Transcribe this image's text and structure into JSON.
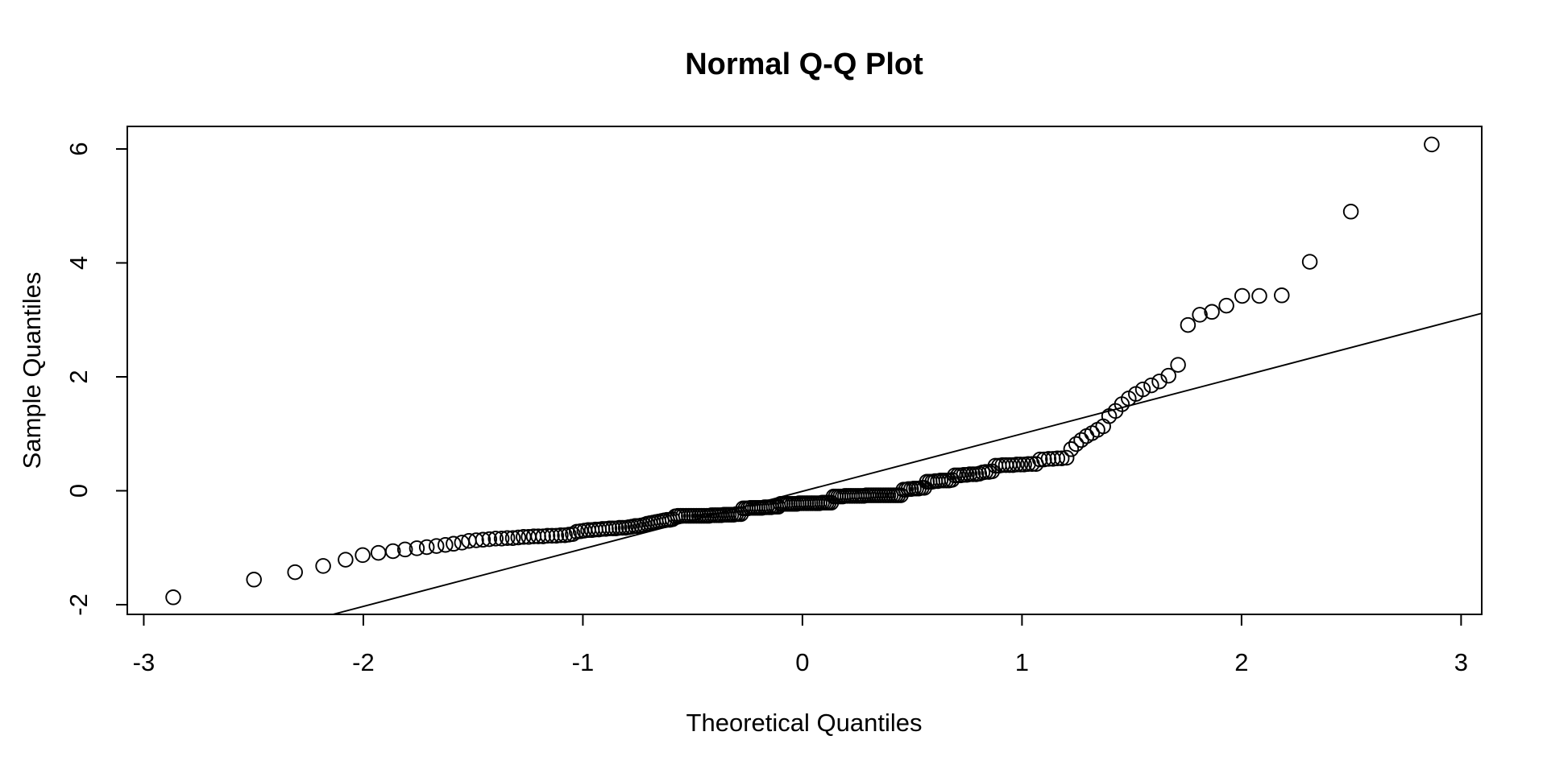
{
  "title": "Normal Q-Q Plot",
  "x_axis": {
    "label": "Theoretical Quantiles",
    "ticks": [
      "-3",
      "-2",
      "-1",
      "0",
      "1",
      "2",
      "3"
    ]
  },
  "y_axis": {
    "label": "Sample Quantiles",
    "ticks": [
      "-2",
      "0",
      "2",
      "4",
      "6"
    ]
  },
  "colors": {
    "foreground": "#000000",
    "background": "#ffffff"
  },
  "chart_data": {
    "type": "scatter",
    "title": "Normal Q-Q Plot",
    "xlabel": "Theoretical Quantiles",
    "ylabel": "Sample Quantiles",
    "xlim": [
      -3.075,
      3.094
    ],
    "ylim": [
      -2.17,
      6.396
    ],
    "x_ticks": [
      -3,
      -2,
      -1,
      0,
      1,
      2,
      3
    ],
    "y_ticks": [
      -2,
      0,
      2,
      4,
      6
    ],
    "grid": false,
    "legend": "none",
    "marker": "open-circle",
    "n_points": 240,
    "reference_line": {
      "slope": 1.01,
      "intercept": -0.01
    },
    "points": [
      [
        -2.866,
        -1.87
      ],
      [
        -2.498,
        -1.56
      ],
      [
        -2.311,
        -1.43
      ],
      [
        -2.183,
        -1.32
      ],
      [
        -2.081,
        -1.21
      ],
      [
        -2.003,
        -1.13
      ],
      [
        -1.931,
        -1.09
      ],
      [
        -1.865,
        -1.06
      ],
      [
        -1.81,
        -1.03
      ],
      [
        -1.756,
        -1.01
      ],
      [
        -1.711,
        -0.99
      ],
      [
        -1.667,
        -0.97
      ],
      [
        -1.626,
        -0.95
      ],
      [
        -1.589,
        -0.93
      ],
      [
        -1.551,
        -0.91
      ],
      [
        -1.519,
        -0.88
      ],
      [
        -1.486,
        -0.87
      ],
      [
        -1.455,
        -0.86
      ],
      [
        -1.426,
        -0.85
      ],
      [
        -1.397,
        -0.84
      ],
      [
        -1.37,
        -0.84
      ],
      [
        -1.344,
        -0.83
      ],
      [
        -1.319,
        -0.83
      ],
      [
        -1.294,
        -0.82
      ],
      [
        -1.27,
        -0.81
      ],
      [
        -1.247,
        -0.81
      ],
      [
        -1.224,
        -0.8
      ],
      [
        -1.203,
        -0.8
      ],
      [
        -1.181,
        -0.8
      ],
      [
        -1.161,
        -0.79
      ],
      [
        -1.141,
        -0.79
      ],
      [
        -1.121,
        -0.79
      ],
      [
        -1.101,
        -0.78
      ],
      [
        -1.082,
        -0.78
      ],
      [
        -1.064,
        -0.77
      ],
      [
        -1.046,
        -0.76
      ],
      [
        -1.028,
        -0.72
      ],
      [
        -1.01,
        -0.71
      ],
      [
        -0.993,
        -0.7
      ],
      [
        -0.976,
        -0.69
      ],
      [
        -0.959,
        -0.69
      ],
      [
        -0.943,
        -0.68
      ],
      [
        -0.927,
        -0.68
      ],
      [
        -0.911,
        -0.67
      ],
      [
        -0.895,
        -0.67
      ],
      [
        -0.879,
        -0.66
      ],
      [
        -0.864,
        -0.66
      ],
      [
        -0.849,
        -0.66
      ],
      [
        -0.834,
        -0.65
      ],
      [
        -0.82,
        -0.65
      ],
      [
        -0.805,
        -0.65
      ],
      [
        -0.791,
        -0.64
      ],
      [
        -0.777,
        -0.63
      ],
      [
        -0.762,
        -0.62
      ],
      [
        -0.749,
        -0.62
      ],
      [
        -0.735,
        -0.61
      ],
      [
        -0.721,
        -0.6
      ],
      [
        -0.708,
        -0.58
      ],
      [
        -0.694,
        -0.57
      ],
      [
        -0.681,
        -0.56
      ],
      [
        -0.668,
        -0.55
      ],
      [
        -0.655,
        -0.54
      ],
      [
        -0.642,
        -0.53
      ],
      [
        -0.629,
        -0.52
      ],
      [
        -0.617,
        -0.51
      ],
      [
        -0.604,
        -0.51
      ],
      [
        -0.592,
        -0.5
      ],
      [
        -0.579,
        -0.45
      ],
      [
        -0.567,
        -0.44
      ],
      [
        -0.555,
        -0.44
      ],
      [
        -0.543,
        -0.44
      ],
      [
        -0.53,
        -0.44
      ],
      [
        -0.518,
        -0.44
      ],
      [
        -0.507,
        -0.44
      ],
      [
        -0.495,
        -0.44
      ],
      [
        -0.483,
        -0.44
      ],
      [
        -0.471,
        -0.44
      ],
      [
        -0.46,
        -0.44
      ],
      [
        -0.448,
        -0.44
      ],
      [
        -0.436,
        -0.44
      ],
      [
        -0.425,
        -0.44
      ],
      [
        -0.414,
        -0.43
      ],
      [
        -0.402,
        -0.43
      ],
      [
        -0.391,
        -0.43
      ],
      [
        -0.38,
        -0.43
      ],
      [
        -0.369,
        -0.43
      ],
      [
        -0.357,
        -0.42
      ],
      [
        -0.346,
        -0.42
      ],
      [
        -0.335,
        -0.42
      ],
      [
        -0.324,
        -0.42
      ],
      [
        -0.313,
        -0.42
      ],
      [
        -0.302,
        -0.41
      ],
      [
        -0.291,
        -0.41
      ],
      [
        -0.28,
        -0.41
      ],
      [
        -0.27,
        -0.31
      ],
      [
        -0.259,
        -0.31
      ],
      [
        -0.248,
        -0.31
      ],
      [
        -0.237,
        -0.3
      ],
      [
        -0.226,
        -0.3
      ],
      [
        -0.216,
        -0.3
      ],
      [
        -0.205,
        -0.3
      ],
      [
        -0.194,
        -0.3
      ],
      [
        -0.184,
        -0.3
      ],
      [
        -0.173,
        -0.29
      ],
      [
        -0.163,
        -0.29
      ],
      [
        -0.152,
        -0.29
      ],
      [
        -0.142,
        -0.29
      ],
      [
        -0.131,
        -0.28
      ],
      [
        -0.12,
        -0.28
      ],
      [
        -0.11,
        -0.28
      ],
      [
        -0.099,
        -0.23
      ],
      [
        -0.089,
        -0.23
      ],
      [
        -0.078,
        -0.23
      ],
      [
        -0.068,
        -0.23
      ],
      [
        -0.058,
        -0.23
      ],
      [
        -0.047,
        -0.23
      ],
      [
        -0.037,
        -0.23
      ],
      [
        -0.026,
        -0.23
      ],
      [
        -0.016,
        -0.22
      ],
      [
        -0.005,
        -0.22
      ],
      [
        0.005,
        -0.22
      ],
      [
        0.016,
        -0.22
      ],
      [
        0.026,
        -0.22
      ],
      [
        0.037,
        -0.22
      ],
      [
        0.047,
        -0.22
      ],
      [
        0.058,
        -0.22
      ],
      [
        0.068,
        -0.22
      ],
      [
        0.078,
        -0.22
      ],
      [
        0.089,
        -0.21
      ],
      [
        0.099,
        -0.21
      ],
      [
        0.11,
        -0.21
      ],
      [
        0.12,
        -0.21
      ],
      [
        0.131,
        -0.21
      ],
      [
        0.142,
        -0.1
      ],
      [
        0.152,
        -0.1
      ],
      [
        0.163,
        -0.1
      ],
      [
        0.173,
        -0.1
      ],
      [
        0.184,
        -0.1
      ],
      [
        0.194,
        -0.09
      ],
      [
        0.205,
        -0.09
      ],
      [
        0.216,
        -0.09
      ],
      [
        0.226,
        -0.09
      ],
      [
        0.237,
        -0.09
      ],
      [
        0.248,
        -0.09
      ],
      [
        0.259,
        -0.09
      ],
      [
        0.27,
        -0.09
      ],
      [
        0.28,
        -0.09
      ],
      [
        0.291,
        -0.08
      ],
      [
        0.302,
        -0.08
      ],
      [
        0.313,
        -0.08
      ],
      [
        0.324,
        -0.08
      ],
      [
        0.335,
        -0.08
      ],
      [
        0.346,
        -0.08
      ],
      [
        0.357,
        -0.08
      ],
      [
        0.369,
        -0.08
      ],
      [
        0.38,
        -0.08
      ],
      [
        0.391,
        -0.08
      ],
      [
        0.402,
        -0.08
      ],
      [
        0.414,
        -0.08
      ],
      [
        0.425,
        -0.08
      ],
      [
        0.436,
        -0.08
      ],
      [
        0.448,
        -0.08
      ],
      [
        0.46,
        0.02
      ],
      [
        0.471,
        0.02
      ],
      [
        0.483,
        0.03
      ],
      [
        0.495,
        0.03
      ],
      [
        0.507,
        0.04
      ],
      [
        0.518,
        0.04
      ],
      [
        0.53,
        0.04
      ],
      [
        0.543,
        0.05
      ],
      [
        0.555,
        0.05
      ],
      [
        0.567,
        0.16
      ],
      [
        0.579,
        0.16
      ],
      [
        0.592,
        0.16
      ],
      [
        0.604,
        0.17
      ],
      [
        0.617,
        0.17
      ],
      [
        0.629,
        0.18
      ],
      [
        0.642,
        0.18
      ],
      [
        0.655,
        0.18
      ],
      [
        0.668,
        0.18
      ],
      [
        0.681,
        0.19
      ],
      [
        0.694,
        0.27
      ],
      [
        0.708,
        0.27
      ],
      [
        0.721,
        0.27
      ],
      [
        0.735,
        0.28
      ],
      [
        0.749,
        0.28
      ],
      [
        0.762,
        0.29
      ],
      [
        0.777,
        0.29
      ],
      [
        0.791,
        0.29
      ],
      [
        0.805,
        0.3
      ],
      [
        0.82,
        0.32
      ],
      [
        0.834,
        0.33
      ],
      [
        0.849,
        0.33
      ],
      [
        0.864,
        0.34
      ],
      [
        0.879,
        0.44
      ],
      [
        0.895,
        0.44
      ],
      [
        0.911,
        0.45
      ],
      [
        0.927,
        0.45
      ],
      [
        0.943,
        0.45
      ],
      [
        0.959,
        0.45
      ],
      [
        0.976,
        0.46
      ],
      [
        0.993,
        0.46
      ],
      [
        1.01,
        0.46
      ],
      [
        1.028,
        0.47
      ],
      [
        1.046,
        0.47
      ],
      [
        1.064,
        0.47
      ],
      [
        1.082,
        0.55
      ],
      [
        1.101,
        0.55
      ],
      [
        1.121,
        0.56
      ],
      [
        1.141,
        0.56
      ],
      [
        1.161,
        0.57
      ],
      [
        1.181,
        0.57
      ],
      [
        1.203,
        0.58
      ],
      [
        1.224,
        0.73
      ],
      [
        1.247,
        0.82
      ],
      [
        1.27,
        0.89
      ],
      [
        1.294,
        0.96
      ],
      [
        1.319,
        1.01
      ],
      [
        1.344,
        1.07
      ],
      [
        1.37,
        1.13
      ],
      [
        1.397,
        1.31
      ],
      [
        1.426,
        1.4
      ],
      [
        1.455,
        1.52
      ],
      [
        1.486,
        1.62
      ],
      [
        1.519,
        1.7
      ],
      [
        1.551,
        1.78
      ],
      [
        1.589,
        1.85
      ],
      [
        1.626,
        1.92
      ],
      [
        1.667,
        2.02
      ],
      [
        1.711,
        2.21
      ],
      [
        1.756,
        2.91
      ],
      [
        1.81,
        3.09
      ],
      [
        1.865,
        3.14
      ],
      [
        1.931,
        3.25
      ],
      [
        2.003,
        3.42
      ],
      [
        2.081,
        3.42
      ],
      [
        2.183,
        3.43
      ],
      [
        2.311,
        4.02
      ],
      [
        2.498,
        4.9
      ],
      [
        2.866,
        6.08
      ]
    ]
  }
}
